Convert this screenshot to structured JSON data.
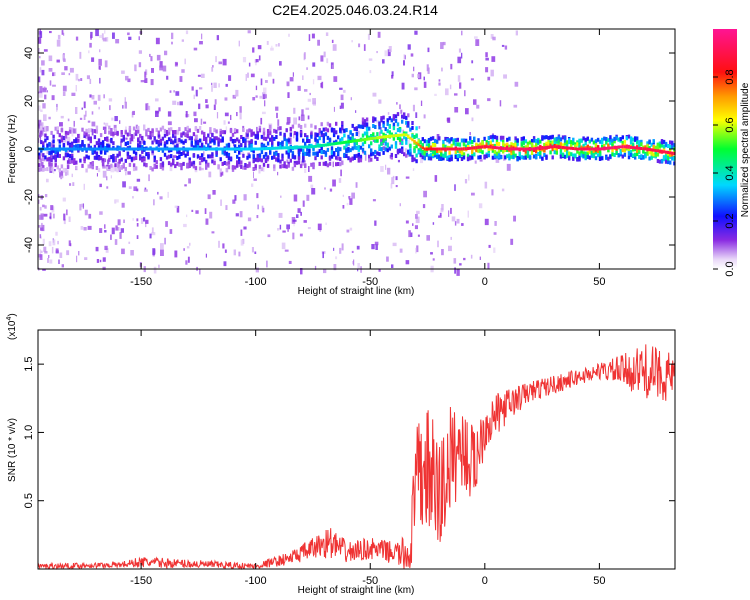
{
  "title": "C2E4.2025.046.03.24.R14",
  "chart_data": [
    {
      "type": "heatmap",
      "xlabel": "Height of straight line (km)",
      "ylabel": "Frequency (Hz)",
      "xlim": [
        -195,
        83
      ],
      "ylim": [
        -50,
        50
      ],
      "xticks": [
        -150,
        -100,
        -50,
        0,
        50
      ],
      "yticks": [
        -40,
        -20,
        0,
        20,
        40
      ],
      "colorbar": {
        "label": "Normalized spectral amplitude",
        "range": [
          0,
          1
        ],
        "ticks": [
          "0.0",
          "0.2",
          "0.4",
          "0.6",
          "0.8"
        ],
        "colormap": "rainbow"
      },
      "ridge": {
        "x": [
          -195,
          -150,
          -100,
          -75,
          -60,
          -45,
          -35,
          -27,
          -20,
          -10,
          0,
          10,
          20,
          30,
          40,
          50,
          60,
          70,
          83
        ],
        "freq": [
          0,
          0,
          0,
          1,
          3,
          5,
          6,
          0,
          0,
          0,
          1,
          0,
          0,
          1,
          0,
          0,
          1,
          0,
          -2
        ],
        "amplitude": [
          0.3,
          0.3,
          0.35,
          0.4,
          0.5,
          0.6,
          0.6,
          0.8,
          0.9,
          0.9,
          0.9,
          0.95,
          0.95,
          0.9,
          0.9,
          0.95,
          0.95,
          0.9,
          0.9
        ]
      }
    },
    {
      "type": "line",
      "xlabel": "Height of straight line (km)",
      "ylabel": "SNR (10 * v/v)",
      "scale_label": "(x10",
      "scale_exp": "4",
      "xlim": [
        -195,
        83
      ],
      "ylim": [
        0,
        1.75
      ],
      "xticks": [
        -150,
        -100,
        -50,
        0,
        50
      ],
      "yticks": [
        "0.5",
        "1.0",
        "1.5"
      ],
      "color": "#ef3333",
      "series_envelope": {
        "x": [
          -195,
          -160,
          -150,
          -100,
          -85,
          -75,
          -68,
          -60,
          -50,
          -40,
          -33,
          -30,
          -25,
          -20,
          -15,
          -10,
          -5,
          0,
          10,
          20,
          30,
          40,
          50,
          60,
          70,
          83
        ],
        "mean": [
          0.02,
          0.03,
          0.05,
          0.02,
          0.08,
          0.15,
          0.2,
          0.12,
          0.15,
          0.12,
          0.1,
          0.6,
          0.75,
          0.5,
          0.8,
          0.9,
          0.75,
          1.05,
          1.2,
          1.3,
          1.35,
          1.4,
          1.45,
          1.45,
          1.45,
          1.4
        ],
        "spread": [
          0.02,
          0.02,
          0.04,
          0.02,
          0.05,
          0.08,
          0.12,
          0.08,
          0.08,
          0.08,
          0.15,
          0.45,
          0.45,
          0.5,
          0.4,
          0.3,
          0.3,
          0.2,
          0.12,
          0.08,
          0.07,
          0.06,
          0.06,
          0.12,
          0.2,
          0.18
        ]
      }
    }
  ]
}
